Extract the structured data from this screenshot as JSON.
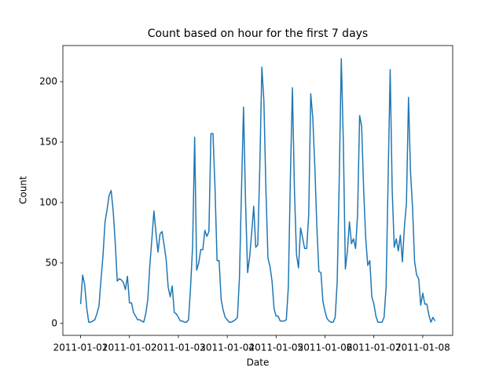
{
  "chart_data": {
    "type": "line",
    "title": "Count based on hour for the first 7 days",
    "xlabel": "Date",
    "ylabel": "Count",
    "color": "#1f77b4",
    "x": [
      0,
      1,
      2,
      3,
      4,
      5,
      6,
      7,
      8,
      9,
      10,
      11,
      12,
      13,
      14,
      15,
      16,
      17,
      18,
      19,
      20,
      21,
      22,
      23,
      24,
      25,
      26,
      27,
      28,
      29,
      30,
      31,
      32,
      33,
      34,
      35,
      36,
      37,
      38,
      39,
      40,
      41,
      42,
      43,
      44,
      45,
      46,
      47,
      48,
      49,
      50,
      51,
      52,
      53,
      54,
      55,
      56,
      57,
      58,
      59,
      60,
      61,
      62,
      63,
      64,
      65,
      66,
      67,
      68,
      69,
      70,
      71,
      72,
      73,
      74,
      75,
      76,
      77,
      78,
      79,
      80,
      81,
      82,
      83,
      84,
      85,
      86,
      87,
      88,
      89,
      90,
      91,
      92,
      93,
      94,
      95,
      96,
      97,
      98,
      99,
      100,
      101,
      102,
      103,
      104,
      105,
      106,
      107,
      108,
      109,
      110,
      111,
      112,
      113,
      114,
      115,
      116,
      117,
      118,
      119,
      120,
      121,
      122,
      123,
      124,
      125,
      126,
      127,
      128,
      129,
      130,
      131,
      132,
      133,
      134,
      135,
      136,
      137,
      138,
      139,
      140,
      141,
      142,
      143,
      144,
      145,
      146,
      147,
      148,
      149,
      150,
      151,
      152,
      153,
      154,
      155,
      156,
      157,
      158,
      159,
      160,
      161,
      162,
      163,
      164,
      165,
      166,
      167,
      168,
      169,
      170,
      171,
      172,
      173,
      174
    ],
    "values": [
      16,
      40,
      32,
      13,
      1,
      1,
      2,
      3,
      8,
      14,
      36,
      56,
      84,
      94,
      106,
      110,
      93,
      67,
      35,
      37,
      36,
      34,
      28,
      39,
      17,
      17,
      9,
      6,
      3,
      3,
      2,
      1,
      8,
      20,
      48,
      70,
      93,
      75,
      59,
      74,
      76,
      65,
      53,
      30,
      22,
      31,
      9,
      8,
      5,
      2,
      2,
      1,
      1,
      3,
      30,
      64,
      154,
      44,
      50,
      61,
      61,
      77,
      72,
      76,
      157,
      157,
      112,
      52,
      52,
      20,
      11,
      5,
      3,
      1,
      1,
      2,
      3,
      5,
      38,
      110,
      179,
      100,
      42,
      55,
      75,
      97,
      63,
      65,
      130,
      212,
      184,
      110,
      54,
      47,
      35,
      12,
      6,
      6,
      2,
      2,
      2,
      3,
      30,
      120,
      195,
      110,
      57,
      46,
      79,
      71,
      62,
      62,
      90,
      190,
      170,
      130,
      80,
      43,
      42,
      18,
      10,
      4,
      2,
      1,
      1,
      5,
      35,
      120,
      219,
      150,
      45,
      60,
      84,
      66,
      70,
      62,
      90,
      172,
      163,
      110,
      70,
      48,
      52,
      22,
      16,
      6,
      1,
      1,
      1,
      5,
      30,
      120,
      210,
      110,
      63,
      70,
      60,
      73,
      51,
      80,
      100,
      187,
      125,
      95,
      51,
      40,
      37,
      15,
      25,
      16,
      16,
      7,
      1,
      5,
      2
    ],
    "xlim": [
      -8.7,
      182.7
    ],
    "ylim": [
      -9.9,
      229.9
    ],
    "xticks": [
      {
        "value": 0,
        "label": "2011-01-01"
      },
      {
        "value": 24,
        "label": "2011-01-02"
      },
      {
        "value": 48,
        "label": "2011-01-03"
      },
      {
        "value": 72,
        "label": "2011-01-04"
      },
      {
        "value": 96,
        "label": "2011-01-05"
      },
      {
        "value": 120,
        "label": "2011-01-06"
      },
      {
        "value": 144,
        "label": "2011-01-07"
      },
      {
        "value": 168,
        "label": "2011-01-08"
      }
    ],
    "yticks": [
      0,
      50,
      100,
      150,
      200
    ],
    "grid": false
  }
}
